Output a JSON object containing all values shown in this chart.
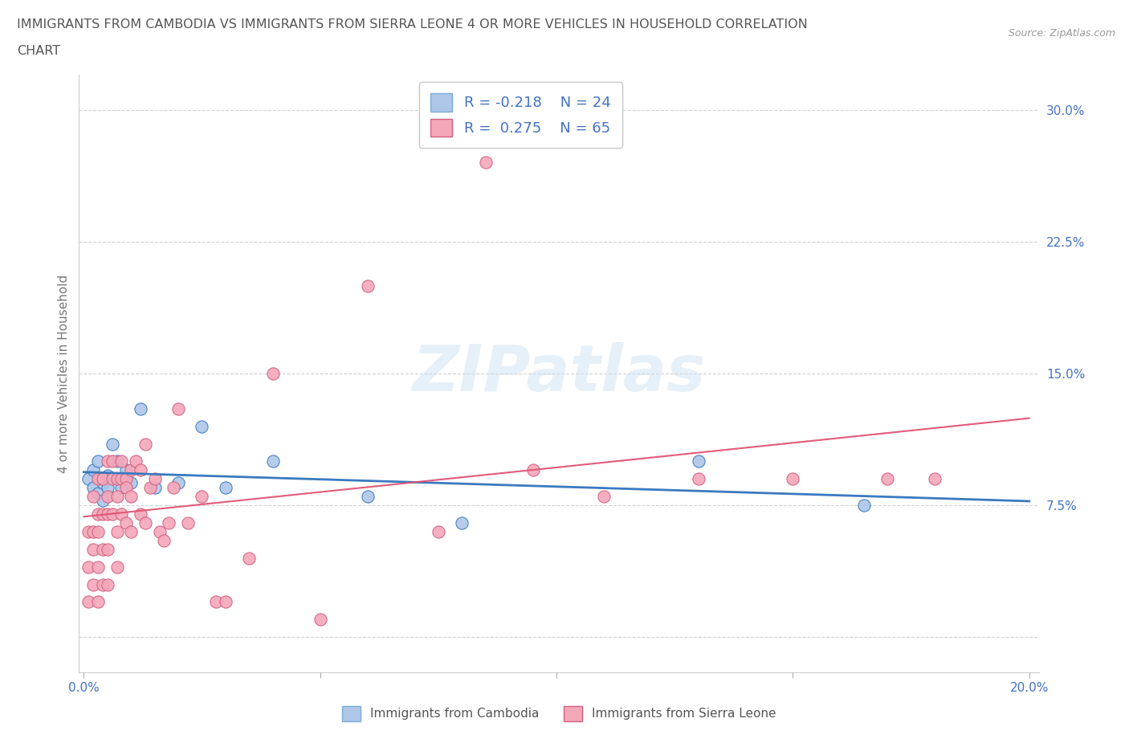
{
  "title_line1": "IMMIGRANTS FROM CAMBODIA VS IMMIGRANTS FROM SIERRA LEONE 4 OR MORE VEHICLES IN HOUSEHOLD CORRELATION",
  "title_line2": "CHART",
  "source": "Source: ZipAtlas.com",
  "ylabel": "4 or more Vehicles in Household",
  "xlabel_cambodia": "Immigrants from Cambodia",
  "xlabel_sierra": "Immigrants from Sierra Leone",
  "legend_cambodia": {
    "R": -0.218,
    "N": 24
  },
  "legend_sierra": {
    "R": 0.275,
    "N": 65
  },
  "color_cambodia": "#aec6e8",
  "color_sierra": "#f4a7b9",
  "color_trend_cambodia": "#3a7abf",
  "color_trend_sierra": "#e05070",
  "color_trend_sierra_dashed": "#e8a0b0",
  "xmin": 0.0,
  "xmax": 0.2,
  "ymin": -0.02,
  "ymax": 0.32,
  "watermark": "ZIPatlas",
  "cambodia_x": [
    0.001,
    0.002,
    0.002,
    0.003,
    0.003,
    0.004,
    0.004,
    0.005,
    0.005,
    0.006,
    0.007,
    0.008,
    0.009,
    0.01,
    0.012,
    0.015,
    0.02,
    0.025,
    0.03,
    0.04,
    0.06,
    0.08,
    0.13,
    0.165
  ],
  "cambodia_y": [
    0.09,
    0.095,
    0.085,
    0.1,
    0.082,
    0.088,
    0.078,
    0.092,
    0.085,
    0.11,
    0.1,
    0.085,
    0.095,
    0.088,
    0.13,
    0.085,
    0.088,
    0.12,
    0.085,
    0.1,
    0.08,
    0.065,
    0.1,
    0.075
  ],
  "sierra_x": [
    0.001,
    0.001,
    0.001,
    0.002,
    0.002,
    0.002,
    0.002,
    0.003,
    0.003,
    0.003,
    0.003,
    0.003,
    0.004,
    0.004,
    0.004,
    0.004,
    0.005,
    0.005,
    0.005,
    0.005,
    0.005,
    0.006,
    0.006,
    0.006,
    0.007,
    0.007,
    0.007,
    0.007,
    0.008,
    0.008,
    0.008,
    0.009,
    0.009,
    0.009,
    0.01,
    0.01,
    0.01,
    0.011,
    0.012,
    0.012,
    0.013,
    0.013,
    0.014,
    0.015,
    0.016,
    0.017,
    0.018,
    0.019,
    0.02,
    0.022,
    0.025,
    0.028,
    0.03,
    0.035,
    0.04,
    0.05,
    0.06,
    0.075,
    0.085,
    0.095,
    0.11,
    0.13,
    0.15,
    0.17,
    0.18
  ],
  "sierra_y": [
    0.06,
    0.04,
    0.02,
    0.08,
    0.06,
    0.05,
    0.03,
    0.09,
    0.07,
    0.06,
    0.04,
    0.02,
    0.09,
    0.07,
    0.05,
    0.03,
    0.1,
    0.08,
    0.07,
    0.05,
    0.03,
    0.1,
    0.09,
    0.07,
    0.09,
    0.08,
    0.06,
    0.04,
    0.1,
    0.09,
    0.07,
    0.09,
    0.085,
    0.065,
    0.095,
    0.08,
    0.06,
    0.1,
    0.095,
    0.07,
    0.11,
    0.065,
    0.085,
    0.09,
    0.06,
    0.055,
    0.065,
    0.085,
    0.13,
    0.065,
    0.08,
    0.02,
    0.02,
    0.045,
    0.15,
    0.01,
    0.2,
    0.06,
    0.27,
    0.095,
    0.08,
    0.09,
    0.09,
    0.09,
    0.09
  ]
}
